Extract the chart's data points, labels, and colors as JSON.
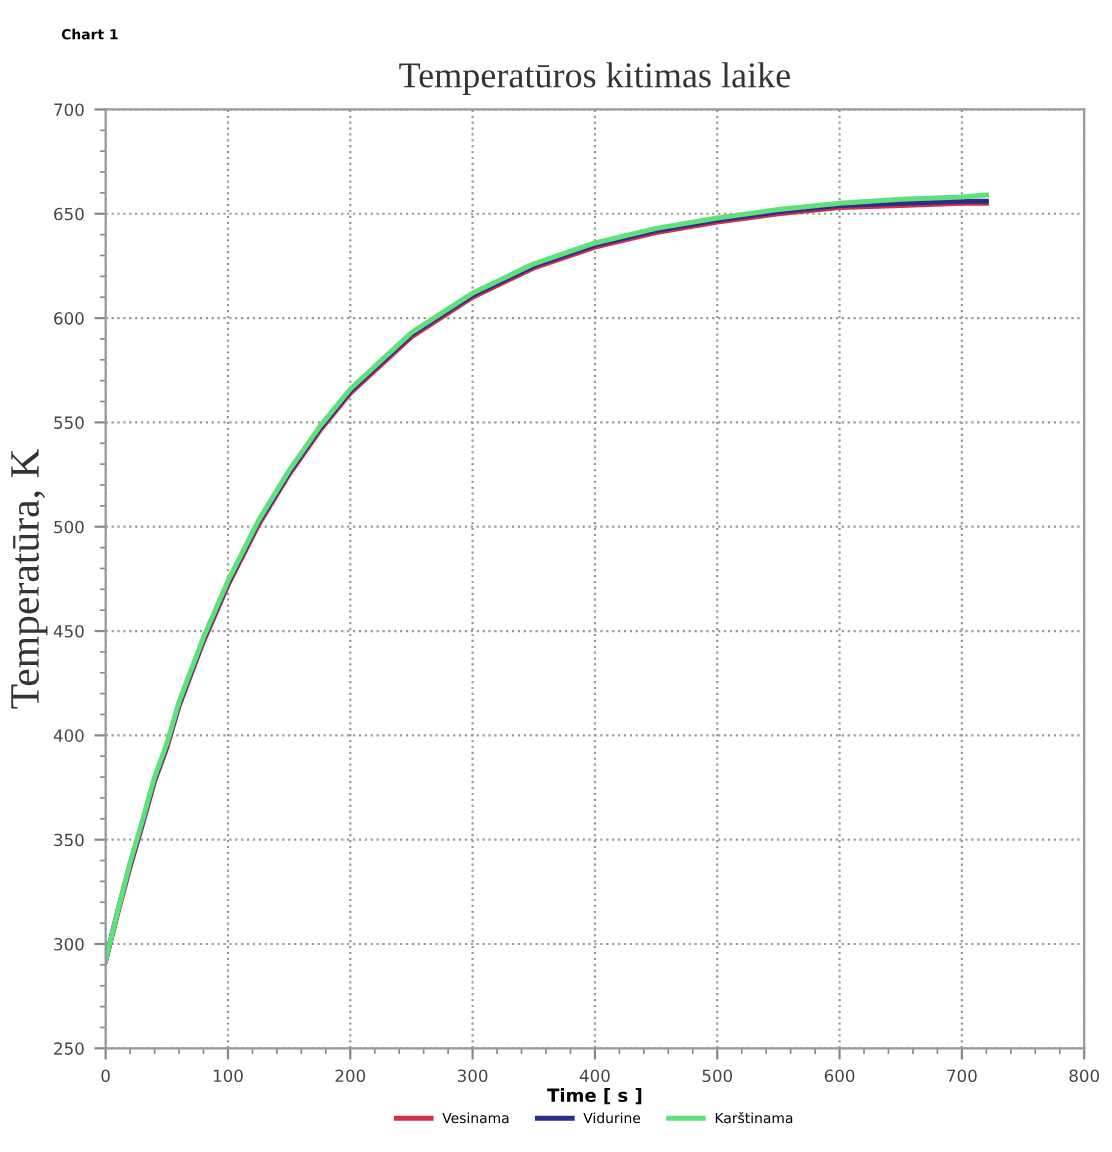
{
  "chart_data": {
    "type": "line",
    "title": "Temperatūros kitimas laike",
    "xlabel": "Time [ s ]",
    "ylabel": "Temperatūra, K",
    "annotations": [
      "Chart 1"
    ],
    "x": [
      0,
      10,
      20,
      30,
      40,
      50,
      60,
      80,
      100,
      125,
      150,
      175,
      200,
      250,
      300,
      350,
      400,
      450,
      500,
      550,
      600,
      650,
      700,
      720
    ],
    "series": [
      {
        "name": "Vesinama",
        "color": "#d0304a",
        "values": [
          292,
          315,
          337,
          357,
          378,
          394,
          414,
          445,
          472,
          501,
          525,
          546,
          564,
          591,
          610,
          624,
          634,
          641,
          646,
          650,
          653,
          654,
          655,
          655
        ]
      },
      {
        "name": "Vidurine",
        "color": "#2c2c8c",
        "values": [
          292,
          316,
          338,
          358,
          379,
          395,
          415,
          446,
          473,
          502,
          526,
          547,
          565,
          592,
          611,
          625,
          635,
          642,
          647,
          651,
          654,
          655,
          656,
          656
        ]
      },
      {
        "name": "Karštinama",
        "color": "#5ee07a",
        "values": [
          292,
          316,
          339,
          359,
          380,
          396,
          416,
          447,
          474,
          503,
          527,
          548,
          566,
          593,
          612,
          626,
          636,
          643,
          648,
          652,
          655,
          657,
          658,
          659
        ]
      }
    ],
    "xlim": [
      0,
      800
    ],
    "ylim": [
      250,
      700
    ],
    "xticks": [
      0,
      100,
      200,
      300,
      400,
      500,
      600,
      700,
      800
    ],
    "yticks": [
      250,
      300,
      350,
      400,
      450,
      500,
      550,
      600,
      650,
      700
    ],
    "grid": true,
    "legend": "bottom",
    "line_style": "solid",
    "marker": "none"
  }
}
